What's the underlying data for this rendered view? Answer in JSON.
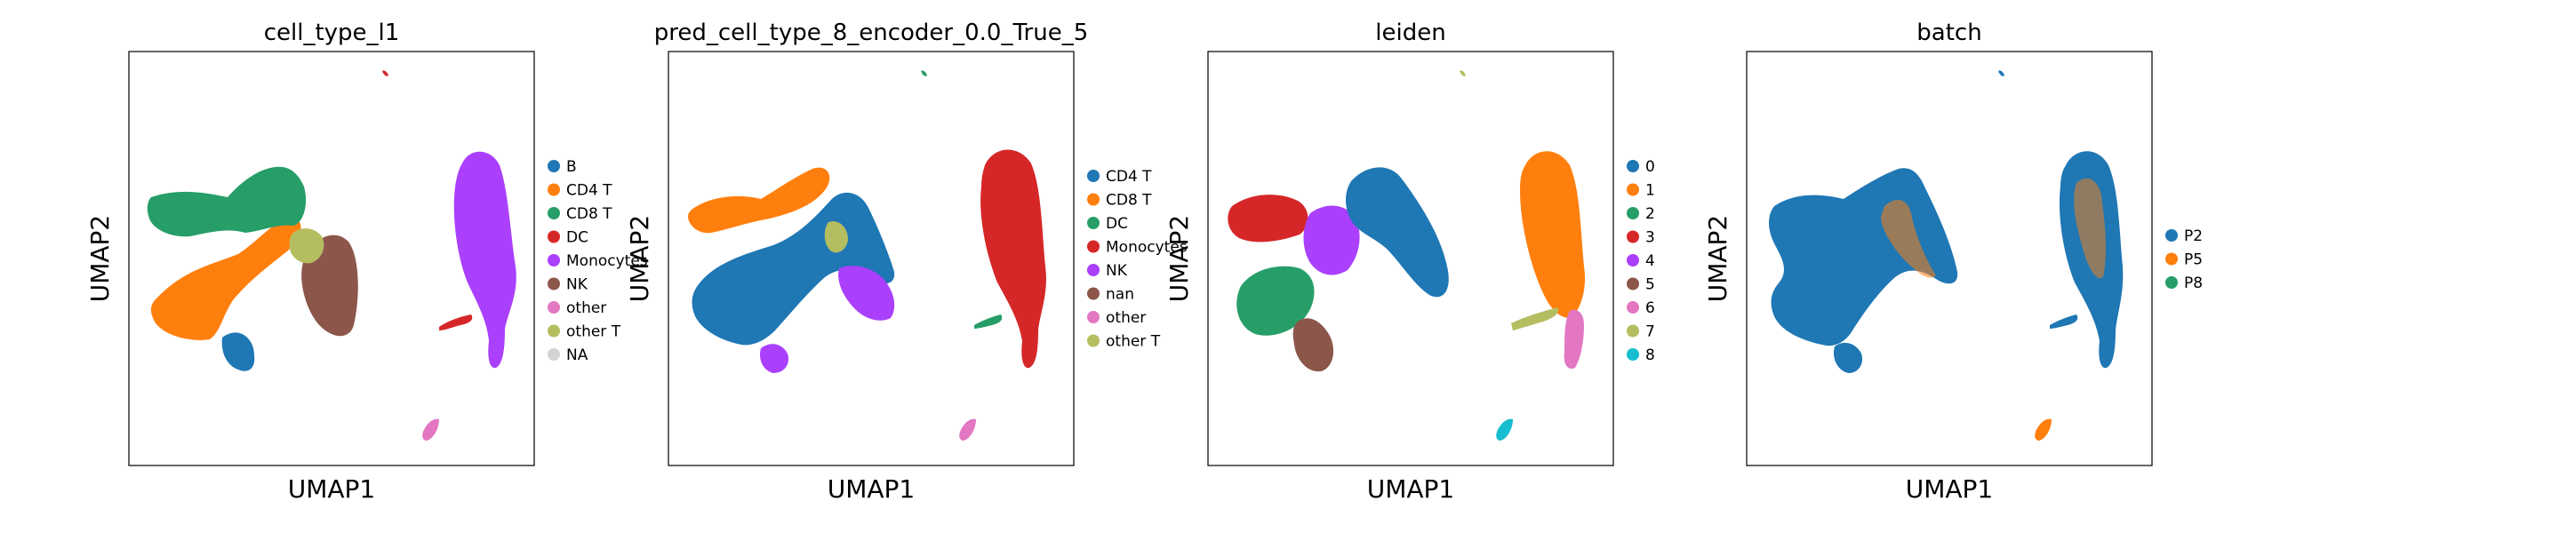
{
  "figure_title": "",
  "palette": {
    "tab_blue": "#1f77b4",
    "tab_orange": "#ff7f0e",
    "tab_green": "#279e68",
    "tab_red": "#d62728",
    "purple": "#aa40fc",
    "brown": "#8c564b",
    "pink": "#e377c2",
    "olive": "#b5bd61",
    "cyan": "#17becf",
    "na_gray": "#d3d3d3"
  },
  "chart_data": [
    {
      "type": "scatter",
      "title": "cell_type_l1",
      "xlabel": "UMAP1",
      "ylabel": "UMAP2",
      "grid": false,
      "ticks": false,
      "legend_position": "right",
      "legend": [
        {
          "label": "B",
          "color": "#1f77b4"
        },
        {
          "label": "CD4 T",
          "color": "#ff7f0e"
        },
        {
          "label": "CD8 T",
          "color": "#279e68"
        },
        {
          "label": "DC",
          "color": "#d62728"
        },
        {
          "label": "Monocytes",
          "color": "#aa40fc"
        },
        {
          "label": "NK",
          "color": "#8c564b"
        },
        {
          "label": "other",
          "color": "#e377c2"
        },
        {
          "label": "other T",
          "color": "#b5bd61"
        },
        {
          "label": "NA",
          "color": "#d3d3d3"
        }
      ]
    },
    {
      "type": "scatter",
      "title": "pred_cell_type_8_encoder_0.0_True_5",
      "xlabel": "UMAP1",
      "ylabel": "UMAP2",
      "grid": false,
      "ticks": false,
      "legend_position": "right",
      "legend": [
        {
          "label": "CD4 T",
          "color": "#1f77b4"
        },
        {
          "label": "CD8 T",
          "color": "#ff7f0e"
        },
        {
          "label": "DC",
          "color": "#279e68"
        },
        {
          "label": "Monocytes",
          "color": "#d62728"
        },
        {
          "label": "NK",
          "color": "#aa40fc"
        },
        {
          "label": "nan",
          "color": "#8c564b"
        },
        {
          "label": "other",
          "color": "#e377c2"
        },
        {
          "label": "other T",
          "color": "#b5bd61"
        }
      ]
    },
    {
      "type": "scatter",
      "title": "leiden",
      "xlabel": "UMAP1",
      "ylabel": "UMAP2",
      "grid": false,
      "ticks": false,
      "legend_position": "right",
      "legend": [
        {
          "label": "0",
          "color": "#1f77b4"
        },
        {
          "label": "1",
          "color": "#ff7f0e"
        },
        {
          "label": "2",
          "color": "#279e68"
        },
        {
          "label": "3",
          "color": "#d62728"
        },
        {
          "label": "4",
          "color": "#aa40fc"
        },
        {
          "label": "5",
          "color": "#8c564b"
        },
        {
          "label": "6",
          "color": "#e377c2"
        },
        {
          "label": "7",
          "color": "#b5bd61"
        },
        {
          "label": "8",
          "color": "#17becf"
        }
      ]
    },
    {
      "type": "scatter",
      "title": "batch",
      "xlabel": "UMAP1",
      "ylabel": "UMAP2",
      "grid": false,
      "ticks": false,
      "legend_position": "right",
      "legend": [
        {
          "label": "P2",
          "color": "#1f77b4"
        },
        {
          "label": "P5",
          "color": "#ff7f0e"
        },
        {
          "label": "P8",
          "color": "#279e68"
        }
      ]
    }
  ]
}
